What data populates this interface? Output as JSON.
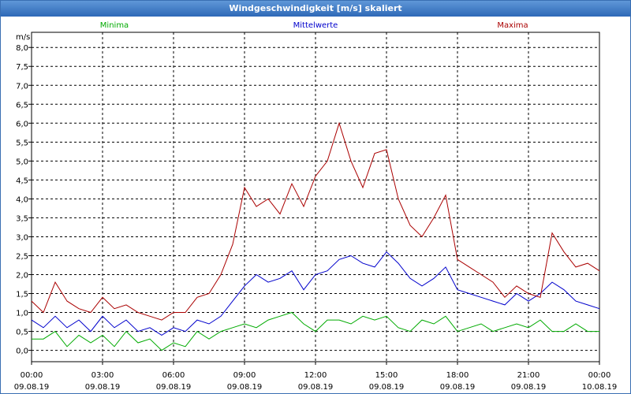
{
  "window": {
    "title": "Windgeschwindigkeit [m/s] skaliert"
  },
  "chart_data": {
    "type": "line",
    "title": "Windgeschwindigkeit [m/s] skaliert",
    "ylabel": "m/s",
    "ylim": [
      -0.3,
      8.4
    ],
    "xlim": [
      0,
      24
    ],
    "yticks": [
      "0,0",
      "0,5",
      "1,0",
      "1,5",
      "2,0",
      "2,5",
      "3,0",
      "3,5",
      "4,0",
      "4,5",
      "5,0",
      "5,5",
      "6,0",
      "6,5",
      "7,0",
      "7,5",
      "8,0"
    ],
    "xticks": [
      {
        "time": "00:00",
        "date": "09.08.19"
      },
      {
        "time": "03:00",
        "date": "09.08.19"
      },
      {
        "time": "06:00",
        "date": "09.08.19"
      },
      {
        "time": "09:00",
        "date": "09.08.19"
      },
      {
        "time": "12:00",
        "date": "09.08.19"
      },
      {
        "time": "15:00",
        "date": "09.08.19"
      },
      {
        "time": "18:00",
        "date": "09.08.19"
      },
      {
        "time": "21:00",
        "date": "09.08.19"
      },
      {
        "time": "00:00",
        "date": "10.08.19"
      }
    ],
    "x_hours": [
      0,
      0.5,
      1,
      1.5,
      2,
      2.5,
      3,
      3.5,
      4,
      4.5,
      5,
      5.5,
      6,
      6.5,
      7,
      7.5,
      8,
      8.5,
      9,
      9.5,
      10,
      10.5,
      11,
      11.5,
      12,
      12.5,
      13,
      13.5,
      14,
      14.5,
      15,
      15.5,
      16,
      16.5,
      17,
      17.5,
      18,
      18.5,
      19,
      19.5,
      20,
      20.5,
      21,
      21.5,
      22,
      22.5,
      23,
      23.5,
      24
    ],
    "series": [
      {
        "name": "Minima",
        "color": "#00aa00",
        "values": [
          0.3,
          0.3,
          0.5,
          0.1,
          0.4,
          0.2,
          0.4,
          0.1,
          0.5,
          0.2,
          0.3,
          0.0,
          0.2,
          0.1,
          0.5,
          0.3,
          0.5,
          0.6,
          0.7,
          0.6,
          0.8,
          0.9,
          1.0,
          0.7,
          0.5,
          0.8,
          0.8,
          0.7,
          0.9,
          0.8,
          0.9,
          0.6,
          0.5,
          0.8,
          0.7,
          0.9,
          0.5,
          0.6,
          0.7,
          0.5,
          0.6,
          0.7,
          0.6,
          0.8,
          0.5,
          0.5,
          0.7,
          0.5,
          0.5
        ]
      },
      {
        "name": "Mittelwerte",
        "color": "#0000cc",
        "values": [
          0.8,
          0.6,
          0.9,
          0.6,
          0.8,
          0.5,
          0.9,
          0.6,
          0.8,
          0.5,
          0.6,
          0.4,
          0.6,
          0.5,
          0.8,
          0.7,
          0.9,
          1.3,
          1.7,
          2.0,
          1.8,
          1.9,
          2.1,
          1.6,
          2.0,
          2.1,
          2.4,
          2.5,
          2.3,
          2.2,
          2.6,
          2.3,
          1.9,
          1.7,
          1.9,
          2.2,
          1.6,
          1.5,
          1.4,
          1.3,
          1.2,
          1.5,
          1.3,
          1.5,
          1.8,
          1.6,
          1.3,
          1.2,
          1.1
        ]
      },
      {
        "name": "Maxima",
        "color": "#aa0000",
        "values": [
          1.3,
          1.0,
          1.8,
          1.3,
          1.1,
          1.0,
          1.4,
          1.1,
          1.2,
          1.0,
          0.9,
          0.8,
          1.0,
          1.0,
          1.4,
          1.5,
          2.0,
          2.8,
          4.3,
          3.8,
          4.0,
          3.6,
          4.4,
          3.8,
          4.6,
          5.0,
          6.0,
          5.0,
          4.3,
          5.2,
          5.3,
          4.0,
          3.3,
          3.0,
          3.5,
          4.1,
          2.4,
          2.2,
          2.0,
          1.8,
          1.4,
          1.7,
          1.5,
          1.4,
          3.1,
          2.6,
          2.2,
          2.3,
          2.1
        ]
      }
    ]
  }
}
